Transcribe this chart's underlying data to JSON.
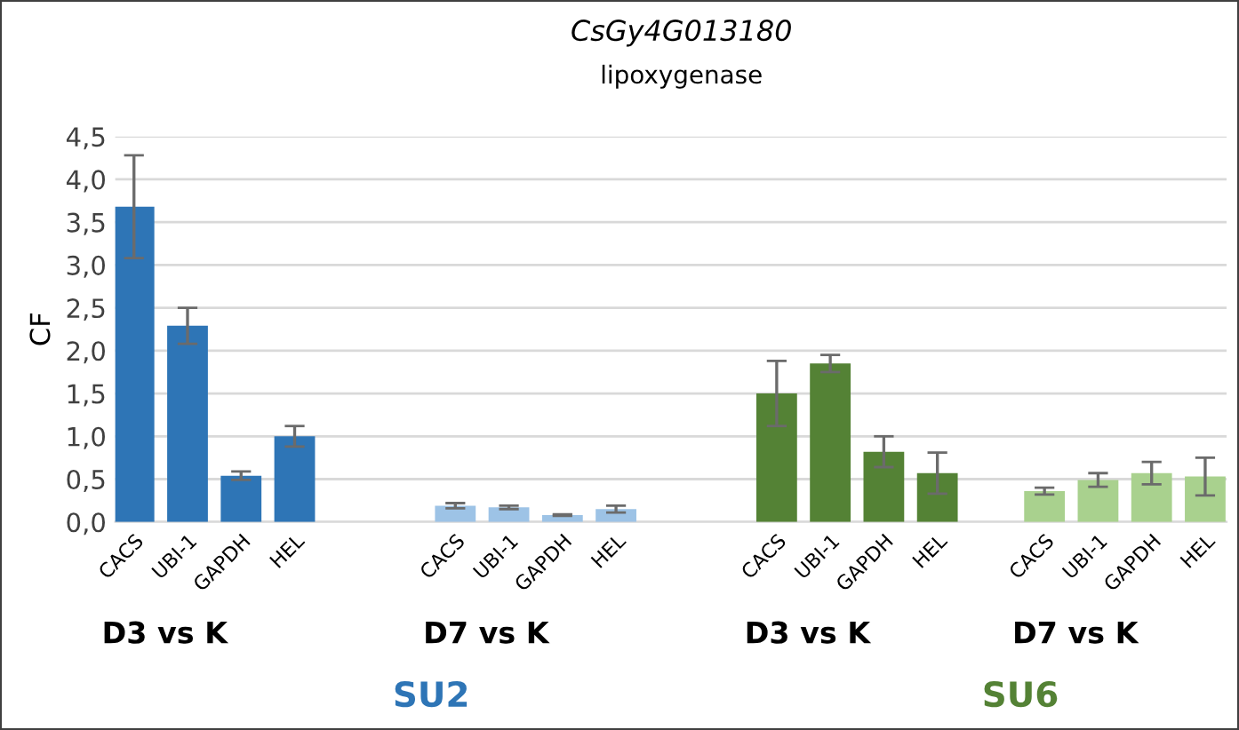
{
  "chart_data": {
    "type": "bar",
    "title": "CsGy4G013180",
    "subtitle": "lipoxygenase",
    "ylabel": "CF",
    "categories": [
      "CACS",
      "UBI-1",
      "GAPDH",
      "HEL",
      null,
      null,
      "CACS",
      "UBI-1",
      "GAPDH",
      "HEL",
      null,
      null,
      "CACS",
      "UBI-1",
      "GAPDH",
      "HEL",
      null,
      "CACS",
      "UBI-1",
      "GAPDH",
      "HEL"
    ],
    "values": [
      3.68,
      2.29,
      0.54,
      1.0,
      null,
      null,
      0.19,
      0.17,
      0.08,
      0.15,
      null,
      null,
      1.5,
      1.85,
      0.82,
      0.57,
      null,
      0.36,
      0.49,
      0.57,
      0.53
    ],
    "errors": [
      0.6,
      0.21,
      0.05,
      0.12,
      null,
      null,
      0.03,
      0.02,
      0.01,
      0.04,
      null,
      null,
      0.38,
      0.1,
      0.18,
      0.24,
      null,
      0.04,
      0.08,
      0.13,
      0.22
    ],
    "colors": [
      "#2e75b6",
      "#2e75b6",
      "#2e75b6",
      "#2e75b6",
      null,
      null,
      "#9dc3e6",
      "#9dc3e6",
      "#9dc3e6",
      "#9dc3e6",
      null,
      null,
      "#548235",
      "#548235",
      "#548235",
      "#548235",
      null,
      "#a9d18e",
      "#a9d18e",
      "#a9d18e",
      "#a9d18e"
    ],
    "ylim": [
      0,
      4.5
    ],
    "yticks": [
      {
        "value": 0,
        "label": "0,0"
      },
      {
        "value": 0.5,
        "label": "0,5"
      },
      {
        "value": 1,
        "label": "1,0"
      },
      {
        "value": 1.5,
        "label": "1,5"
      },
      {
        "value": 2,
        "label": "2,0"
      },
      {
        "value": 2.5,
        "label": "2,5"
      },
      {
        "value": 3,
        "label": "3,0"
      },
      {
        "value": 3.5,
        "label": "3,5"
      },
      {
        "value": 4,
        "label": "4,0"
      },
      {
        "value": 4.5,
        "label": "4,5"
      }
    ],
    "grid": "y",
    "annotations": [
      "D3 vs K",
      "D7 vs K",
      "D3 vs K",
      "D7 vs K",
      "SU2",
      "SU6"
    ]
  }
}
